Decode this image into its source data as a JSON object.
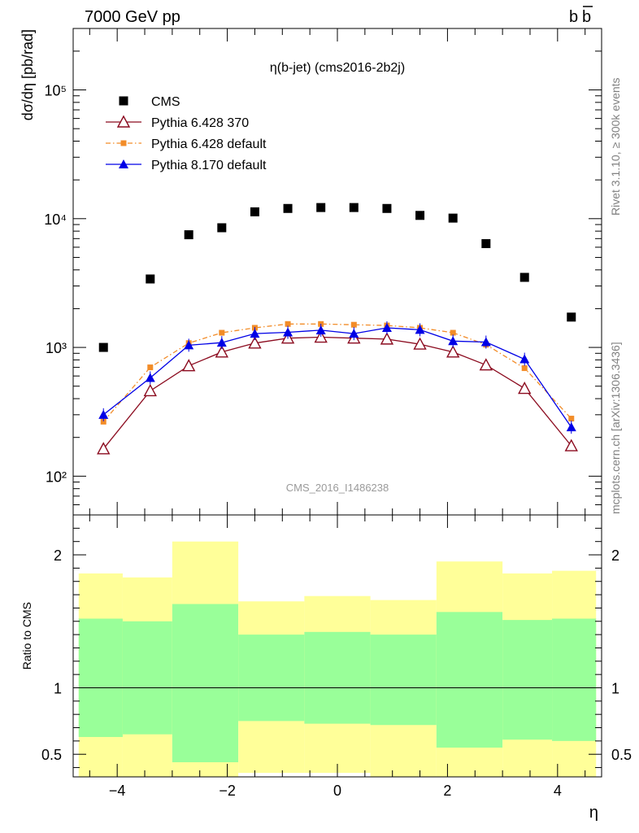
{
  "header": {
    "left": "7000 GeV pp",
    "right_main": "b",
    "right_bar": "b"
  },
  "side_text": {
    "rivet": "Rivet 3.1.10, ≥ 300k events",
    "mcplots": "mcplots.cern.ch [arXiv:1306.3436]"
  },
  "chart_data": [
    {
      "type": "scatter",
      "title": "η(b-jet) (cms2016-2b2j)",
      "ylabel": "dσ/dη [pb/rad]",
      "yscale": "log",
      "ylim": [
        50,
        300000
      ],
      "xlim": [
        -4.8,
        4.8
      ],
      "watermark": "CMS_2016_I1486238",
      "legend_position": "top-left",
      "x": [
        -4.25,
        -3.4,
        -2.7,
        -2.1,
        -1.5,
        -0.9,
        -0.3,
        0.3,
        0.9,
        1.5,
        2.1,
        2.7,
        3.4,
        4.25
      ],
      "series": [
        {
          "name": "CMS",
          "color": "#000000",
          "marker": "square",
          "values": [
            1000,
            3400,
            7500,
            8500,
            11300,
            12000,
            12200,
            12200,
            12000,
            10600,
            10100,
            6400,
            3500,
            1720
          ]
        },
        {
          "name": "Pythia 6.428 370",
          "color": "#8b0a1e",
          "marker": "open-triangle",
          "line": "solid",
          "values": [
            163,
            460,
            720,
            920,
            1080,
            1180,
            1200,
            1180,
            1160,
            1060,
            920,
            730,
            480,
            172
          ]
        },
        {
          "name": "Pythia 6.428 default",
          "color": "#f28c28",
          "marker": "square",
          "line": "dashdot",
          "values": [
            265,
            700,
            1080,
            1300,
            1420,
            1520,
            1520,
            1500,
            1480,
            1420,
            1300,
            1050,
            690,
            280
          ]
        },
        {
          "name": "Pythia 8.170 default",
          "color": "#0000e6",
          "marker": "filled-triangle",
          "line": "solid",
          "values": [
            300,
            580,
            1040,
            1090,
            1280,
            1310,
            1360,
            1280,
            1420,
            1370,
            1120,
            1100,
            810,
            240
          ]
        }
      ],
      "yticks_major": [
        "10²",
        "10³",
        "10⁴",
        "10⁵"
      ],
      "yticks_major_values": [
        100,
        1000,
        10000,
        100000
      ]
    },
    {
      "type": "area",
      "ylabel": "Ratio to CMS",
      "xlabel": "η",
      "xlim": [
        -4.8,
        4.8
      ],
      "ylim": [
        0.33,
        2.3
      ],
      "reference_line": 1,
      "xticks": [
        -4,
        -2,
        0,
        2,
        4
      ],
      "xtick_labels": [
        "−4",
        "−2",
        "0",
        "2",
        "4"
      ],
      "yticks": [
        0.5,
        1,
        2
      ],
      "ytick_labels": [
        "0.5",
        "1",
        "2"
      ],
      "bins": [
        {
          "lo": -4.7,
          "hi": -3.9,
          "yellow": [
            0.33,
            1.86
          ],
          "green": [
            0.63,
            1.52
          ]
        },
        {
          "lo": -3.9,
          "hi": -3.0,
          "yellow": [
            0.33,
            1.83
          ],
          "green": [
            0.65,
            1.5
          ]
        },
        {
          "lo": -3.0,
          "hi": -1.8,
          "yellow": [
            0.33,
            2.1
          ],
          "green": [
            0.44,
            1.63
          ]
        },
        {
          "lo": -1.8,
          "hi": -0.6,
          "yellow": [
            0.36,
            1.65
          ],
          "green": [
            0.75,
            1.4
          ]
        },
        {
          "lo": -0.6,
          "hi": 0.6,
          "yellow": [
            0.36,
            1.69
          ],
          "green": [
            0.73,
            1.42
          ]
        },
        {
          "lo": 0.6,
          "hi": 1.8,
          "yellow": [
            0.33,
            1.66
          ],
          "green": [
            0.72,
            1.4
          ]
        },
        {
          "lo": 1.8,
          "hi": 3.0,
          "yellow": [
            0.33,
            1.95
          ],
          "green": [
            0.55,
            1.57
          ]
        },
        {
          "lo": 3.0,
          "hi": 3.9,
          "yellow": [
            0.33,
            1.86
          ],
          "green": [
            0.61,
            1.51
          ]
        },
        {
          "lo": 3.9,
          "hi": 4.7,
          "yellow": [
            0.33,
            1.88
          ],
          "green": [
            0.6,
            1.52
          ]
        }
      ],
      "colors": {
        "yellow": "#ffff99",
        "green": "#99ff99"
      }
    }
  ]
}
